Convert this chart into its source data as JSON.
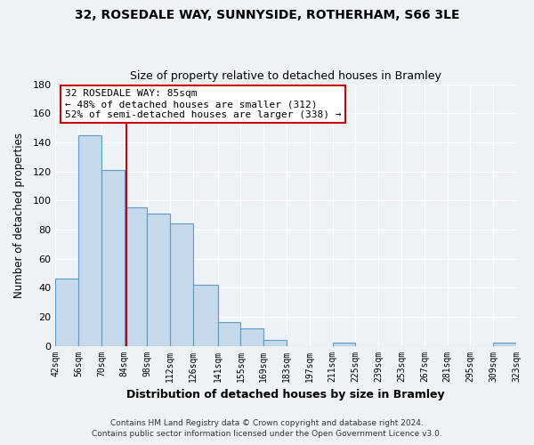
{
  "title1": "32, ROSEDALE WAY, SUNNYSIDE, ROTHERHAM, S66 3LE",
  "title2": "Size of property relative to detached houses in Bramley",
  "xlabel": "Distribution of detached houses by size in Bramley",
  "ylabel": "Number of detached properties",
  "bar_edges": [
    42,
    56,
    70,
    84,
    98,
    112,
    126,
    141,
    155,
    169,
    183,
    197,
    211,
    225,
    239,
    253,
    267,
    281,
    295,
    309,
    323
  ],
  "bar_heights": [
    46,
    145,
    121,
    95,
    91,
    84,
    42,
    16,
    12,
    4,
    0,
    0,
    2,
    0,
    0,
    0,
    0,
    0,
    0,
    2
  ],
  "bar_color": "#c5d9ea",
  "bar_edge_color": "#5b9cc4",
  "property_line_x": 85,
  "property_label": "32 ROSEDALE WAY: 85sqm",
  "annotation_line1": "← 48% of detached houses are smaller (312)",
  "annotation_line2": "52% of semi-detached houses are larger (338) →",
  "annotation_box_color": "white",
  "annotation_box_edge_color": "#cc0000",
  "vline_color": "#cc0000",
  "ylim": [
    0,
    180
  ],
  "yticks": [
    0,
    20,
    40,
    60,
    80,
    100,
    120,
    140,
    160,
    180
  ],
  "tick_labels": [
    "42sqm",
    "56sqm",
    "70sqm",
    "84sqm",
    "98sqm",
    "112sqm",
    "126sqm",
    "141sqm",
    "155sqm",
    "169sqm",
    "183sqm",
    "197sqm",
    "211sqm",
    "225sqm",
    "239sqm",
    "253sqm",
    "267sqm",
    "281sqm",
    "295sqm",
    "309sqm",
    "323sqm"
  ],
  "footer1": "Contains HM Land Registry data © Crown copyright and database right 2024.",
  "footer2": "Contains public sector information licensed under the Open Government Licence v3.0.",
  "bg_color": "#edf2f7",
  "grid_color": "#ffffff"
}
